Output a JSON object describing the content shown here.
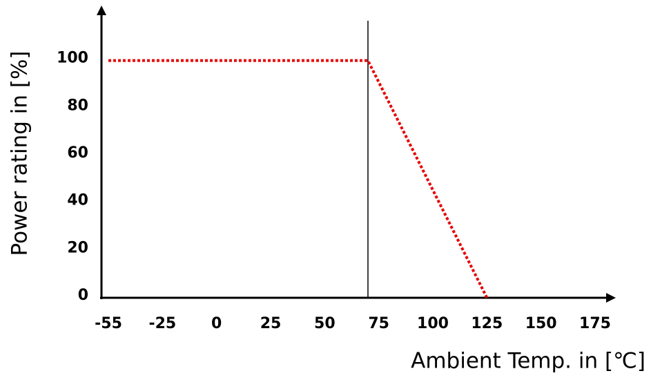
{
  "chart_data": {
    "type": "line",
    "x_label": "Ambient Temp. in [℃]",
    "y_label": "Power rating in [%]",
    "x": [
      -55,
      70,
      125
    ],
    "series": [
      {
        "color": "#e60000",
        "values": [
          100,
          100,
          0
        ]
      }
    ],
    "reference_line_x": 70,
    "xlim": [
      -55,
      175
    ],
    "xticks": [
      -55,
      -25,
      0,
      25,
      50,
      75,
      100,
      125,
      150,
      175
    ],
    "ylim": [
      0,
      120
    ],
    "yticks": [
      0,
      20,
      40,
      60,
      80,
      100
    ]
  }
}
